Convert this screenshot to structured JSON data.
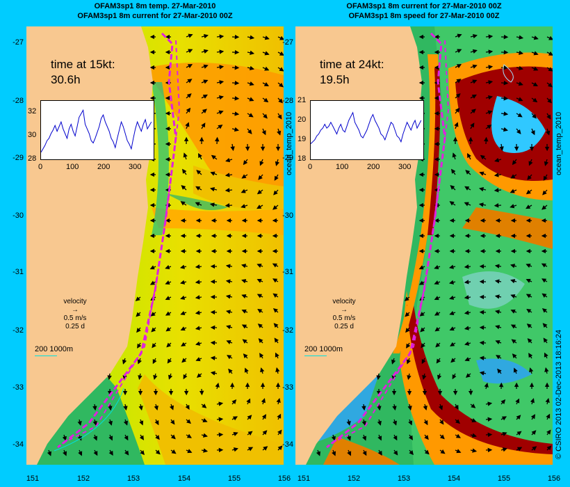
{
  "titles": {
    "left_line1": "OFAM3sp1 8m temp. 27-Mar-2010",
    "left_line2": "OFAM3sp1 8m current for 27-Mar-2010 00Z",
    "right_line1": "OFAM3sp1 8m current for 27-Mar-2010 00Z",
    "right_line2": "OFAM3sp1 8m speed for 27-Mar-2010 00Z"
  },
  "y_ticks": [
    "-27",
    "-28",
    "-29",
    "-30",
    "-31",
    "-32",
    "-33",
    "-34"
  ],
  "x_ticks": [
    "151",
    "152",
    "153",
    "154",
    "155",
    "156"
  ],
  "left_panel": {
    "time_label": "time at 15kt:",
    "time_value": "30.6h",
    "inset_y_ticks": [
      "32",
      "30",
      "28"
    ],
    "inset_x_ticks": [
      "0",
      "100",
      "200",
      "300"
    ],
    "velocity_label": "velocity",
    "velocity_speed": "0.5 m/s",
    "velocity_time": "0.25 d",
    "depth_legend": "200  1000m",
    "colorbar_label": "ocean_temp_2010"
  },
  "right_panel": {
    "time_label": "time at 24kt:",
    "time_value": "19.5h",
    "inset_y_ticks": [
      "21",
      "20",
      "19",
      "18"
    ],
    "inset_x_ticks": [
      "0",
      "100",
      "200",
      "300"
    ],
    "velocity_label": "velocity",
    "velocity_speed": "0.5 m/s",
    "velocity_time": "0.25 d",
    "depth_legend": "200  1000m",
    "colorbar_label": "ocean_temp_2010"
  },
  "credit": "© CSIRO 2013   02-Dec-2013 18:16:24",
  "colors": {
    "background": "#00ccff",
    "land": "#f8c890",
    "track": "#e020e0",
    "warm": "#ff9900",
    "hot": "#a00000"
  },
  "chart_data": [
    {
      "type": "heatmap",
      "title": "OFAM3sp1 8m temp. 27-Mar-2010",
      "xlim": [
        150.9,
        156
      ],
      "ylim": [
        -34.4,
        -26.7
      ],
      "inset": {
        "type": "line",
        "xlim": [
          0,
          360
        ],
        "ylim": [
          28,
          33
        ],
        "values": [
          28.6,
          28.9,
          29.2,
          29.6,
          29.8,
          30.2,
          30.5,
          30.9,
          30.4,
          30.8,
          31.2,
          30.6,
          30.2,
          29.8,
          30.6,
          31.0,
          30.4,
          30.0,
          30.8,
          31.6,
          31.9,
          32.2,
          31.0,
          30.6,
          30.2,
          29.6,
          29.4,
          29.8,
          30.3,
          30.8,
          31.5,
          31.8,
          31.2,
          30.8,
          30.4,
          29.8,
          29.5,
          29.0,
          29.8,
          30.5,
          31.2,
          30.8,
          30.2,
          29.6,
          29.3,
          28.9,
          29.8,
          30.6,
          31.2,
          30.8,
          30.4,
          31.0,
          31.4,
          30.6,
          30.9,
          31.2
        ]
      }
    },
    {
      "type": "heatmap",
      "title": "OFAM3sp1 8m speed for 27-Mar-2010 00Z",
      "xlim": [
        150.9,
        156
      ],
      "ylim": [
        -34.4,
        -26.7
      ],
      "inset": {
        "type": "line",
        "xlim": [
          0,
          360
        ],
        "ylim": [
          18,
          21
        ],
        "values": [
          18.8,
          18.9,
          19.0,
          19.2,
          19.3,
          19.5,
          19.6,
          19.8,
          19.6,
          19.7,
          19.9,
          19.7,
          19.5,
          19.3,
          19.6,
          19.8,
          19.5,
          19.4,
          19.7,
          20.0,
          20.2,
          20.4,
          19.9,
          19.7,
          19.5,
          19.2,
          19.1,
          19.3,
          19.5,
          19.8,
          20.1,
          20.3,
          20.0,
          19.8,
          19.6,
          19.3,
          19.2,
          19.0,
          19.3,
          19.6,
          19.9,
          19.8,
          19.5,
          19.2,
          19.1,
          18.9,
          19.3,
          19.6,
          19.9,
          19.7,
          19.5,
          19.8,
          20.0,
          19.6,
          19.8,
          20.0
        ]
      }
    }
  ]
}
